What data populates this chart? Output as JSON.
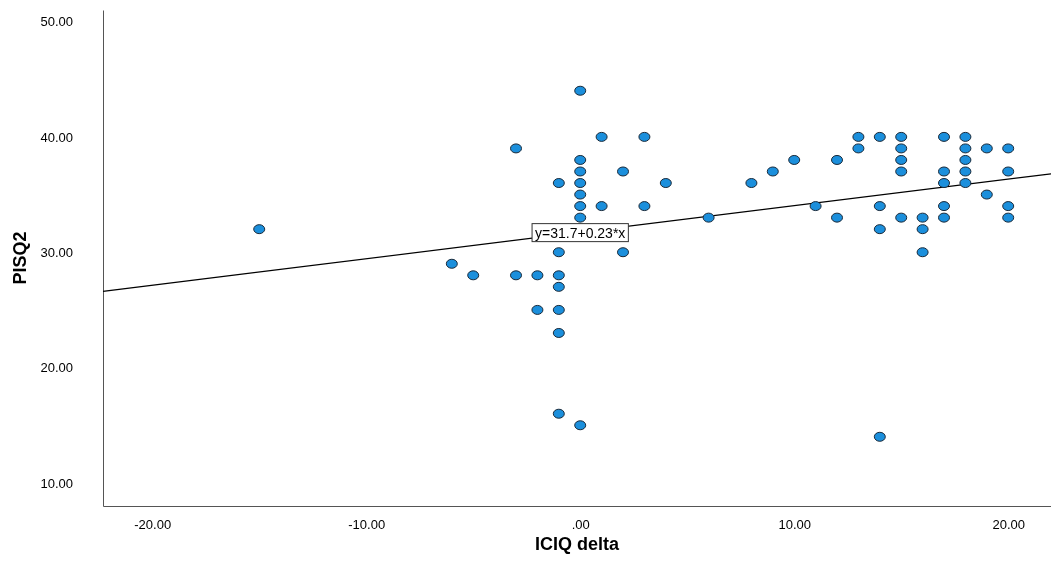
{
  "chart_data": {
    "type": "scatter",
    "xlabel": "ICIQ delta",
    "ylabel": "PISQ2",
    "xlim": [
      -22.3,
      22
    ],
    "ylim": [
      8,
      51
    ],
    "xticks": [
      {
        "value": -20,
        "label": "-20.00"
      },
      {
        "value": -10,
        "label": "-10.00"
      },
      {
        "value": 0,
        "label": ".00"
      },
      {
        "value": 10,
        "label": "10.00"
      },
      {
        "value": 20,
        "label": "20.00"
      }
    ],
    "yticks": [
      {
        "value": 10,
        "label": "10.00"
      },
      {
        "value": 20,
        "label": "20.00"
      },
      {
        "value": 30,
        "label": "30.00"
      },
      {
        "value": 40,
        "label": "40.00"
      },
      {
        "value": 50,
        "label": "50.00"
      }
    ],
    "grid": false,
    "series": [
      {
        "marker": "circle",
        "color": "#1b8fdc",
        "x": [
          -15,
          0,
          1,
          3,
          -3,
          0,
          0,
          2,
          -1,
          0,
          4,
          0,
          0,
          1,
          3,
          0,
          6,
          -1,
          2,
          -6,
          -5,
          -3,
          -2,
          -1,
          -1,
          -2,
          -1,
          -1,
          -1,
          0,
          13,
          14,
          15,
          17,
          18,
          13,
          15,
          18,
          19,
          20,
          10,
          12,
          15,
          18,
          9,
          15,
          17,
          18,
          20,
          8,
          17,
          18,
          19,
          11,
          14,
          17,
          20,
          12,
          15,
          16,
          17,
          20,
          14,
          16,
          16,
          14
        ],
        "values": [
          32,
          44,
          40,
          40,
          39,
          38,
          37,
          37,
          36,
          36,
          36,
          35,
          34,
          34,
          34,
          33,
          33,
          30,
          30,
          29,
          28,
          28,
          28,
          28,
          27,
          25,
          25,
          23,
          16,
          15,
          40,
          40,
          40,
          40,
          40,
          39,
          39,
          39,
          39,
          39,
          38,
          38,
          38,
          38,
          37,
          37,
          37,
          37,
          37,
          36,
          36,
          36,
          35,
          34,
          34,
          34,
          34,
          33,
          33,
          33,
          33,
          33,
          32,
          32,
          30,
          14
        ]
      },
      {
        "type": "line",
        "color": "#000000",
        "x": [
          -22.3,
          22
        ],
        "values": [
          26.6,
          36.8
        ]
      }
    ],
    "annotations": [
      {
        "text": "y=31.7+0.23*x",
        "x": 0,
        "y": 31.7
      }
    ]
  }
}
